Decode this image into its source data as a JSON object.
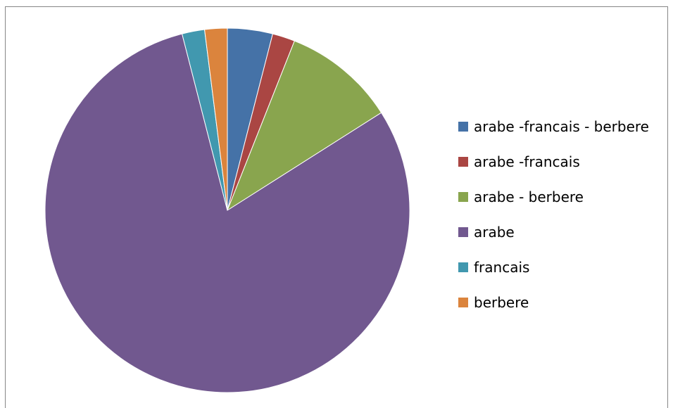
{
  "chart_data": {
    "type": "pie",
    "title": "",
    "legend_position": "right",
    "start_angle_deg": 0,
    "direction": "clockwise",
    "slices": [
      {
        "label": "arabe -francais - berbere",
        "value": 4.0,
        "color": "#4572A7"
      },
      {
        "label": "arabe -francais",
        "value": 2.0,
        "color": "#AA4643"
      },
      {
        "label": "arabe - berbere",
        "value": 10.0,
        "color": "#89A54E"
      },
      {
        "label": "arabe",
        "value": 80.0,
        "color": "#71588F"
      },
      {
        "label": "francais",
        "value": 2.0,
        "color": "#4198AF"
      },
      {
        "label": "berbere",
        "value": 2.0,
        "color": "#DB843D"
      }
    ]
  }
}
